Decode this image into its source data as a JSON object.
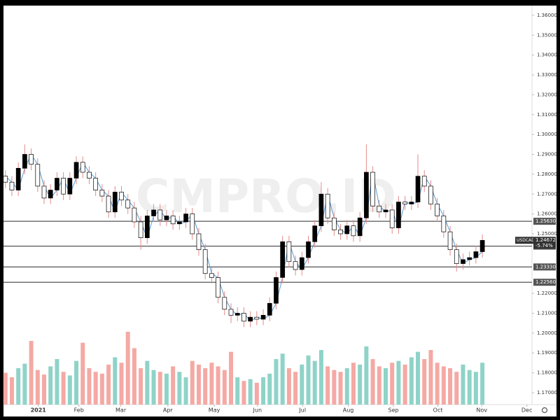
{
  "chart_data": {
    "type": "candlestick",
    "watermark": "CMPRO.ID",
    "xlim": [
      -0.3,
      81.7
    ],
    "xticks": [
      {
        "value": 5.1,
        "label": "2021"
      },
      {
        "value": 11.4,
        "label": "Feb"
      },
      {
        "value": 17.9,
        "label": "Mar"
      },
      {
        "value": 25.2,
        "label": "Apr"
      },
      {
        "value": 32.4,
        "label": "May"
      },
      {
        "value": 39.1,
        "label": "Jun"
      },
      {
        "value": 46.1,
        "label": "Jul"
      },
      {
        "value": 53.2,
        "label": "Aug"
      },
      {
        "value": 60.2,
        "label": "Sep"
      },
      {
        "value": 67.1,
        "label": "Oct"
      },
      {
        "value": 73.9,
        "label": "Nov"
      },
      {
        "value": 80.9,
        "label": "Dec"
      }
    ],
    "ylim": [
      1.164,
      1.3649
    ],
    "yticks": [
      {
        "value": 1.36,
        "label": "1.36000"
      },
      {
        "value": 1.35,
        "label": "1.35000"
      },
      {
        "value": 1.34,
        "label": "1.34000"
      },
      {
        "value": 1.33,
        "label": "1.33000"
      },
      {
        "value": 1.32,
        "label": "1.32000"
      },
      {
        "value": 1.31,
        "label": "1.31000"
      },
      {
        "value": 1.3,
        "label": "1.30000"
      },
      {
        "value": 1.29,
        "label": "1.29000"
      },
      {
        "value": 1.28,
        "label": "1.28000"
      },
      {
        "value": 1.27,
        "label": "1.27000"
      },
      {
        "value": 1.26,
        "label": "1.26000"
      },
      {
        "value": 1.25,
        "label": "1.25000"
      },
      {
        "value": 1.22,
        "label": "1.22000"
      },
      {
        "value": 1.21,
        "label": "1.21000"
      },
      {
        "value": 1.2,
        "label": "1.20000"
      },
      {
        "value": 1.19,
        "label": "1.19000"
      },
      {
        "value": 1.18,
        "label": "1.18000"
      },
      {
        "value": 1.17,
        "label": "1.17000"
      }
    ],
    "up_color": "#000000",
    "down_color": "#ffffff",
    "wick_color": "#e58a8a",
    "ma_color": "#5b9bd5",
    "volume_up_color": "#8fd3c8",
    "volume_down_color": "#f4a9a4",
    "volume_lim": [
      0,
      100
    ],
    "opens": [
      1.279,
      1.276,
      1.272,
      1.283,
      1.29,
      1.285,
      1.274,
      1.268,
      1.272,
      1.278,
      1.27,
      1.278,
      1.286,
      1.281,
      1.278,
      1.272,
      1.269,
      1.261,
      1.271,
      1.267,
      1.263,
      1.256,
      1.248,
      1.259,
      1.262,
      1.257,
      1.259,
      1.255,
      1.256,
      1.26,
      1.25,
      1.242,
      1.23,
      1.228,
      1.218,
      1.212,
      1.209,
      1.21,
      1.206,
      1.208,
      1.207,
      1.209,
      1.215,
      1.228,
      1.246,
      1.236,
      1.232,
      1.238,
      1.246,
      1.254,
      1.27,
      1.258,
      1.252,
      1.25,
      1.254,
      1.249,
      1.258,
      1.281,
      1.264,
      1.261,
      1.262,
      1.253,
      1.266,
      1.265,
      1.266,
      1.279,
      1.274,
      1.265,
      1.259,
      1.251,
      1.242,
      1.235,
      1.237,
      1.238,
      1.241
    ],
    "highs": [
      1.282,
      1.279,
      1.286,
      1.295,
      1.293,
      1.288,
      1.277,
      1.275,
      1.281,
      1.281,
      1.281,
      1.289,
      1.289,
      1.284,
      1.281,
      1.275,
      1.272,
      1.274,
      1.274,
      1.27,
      1.266,
      1.259,
      1.262,
      1.265,
      1.265,
      1.262,
      1.262,
      1.259,
      1.263,
      1.263,
      1.253,
      1.245,
      1.233,
      1.231,
      1.221,
      1.215,
      1.213,
      1.213,
      1.211,
      1.211,
      1.212,
      1.218,
      1.231,
      1.249,
      1.249,
      1.239,
      1.241,
      1.249,
      1.257,
      1.276,
      1.273,
      1.261,
      1.255,
      1.257,
      1.257,
      1.261,
      1.295,
      1.284,
      1.267,
      1.265,
      1.265,
      1.269,
      1.269,
      1.269,
      1.29,
      1.282,
      1.277,
      1.268,
      1.262,
      1.254,
      1.245,
      1.24,
      1.241,
      1.244,
      1.2497
    ],
    "lows": [
      1.273,
      1.269,
      1.269,
      1.28,
      1.282,
      1.271,
      1.265,
      1.265,
      1.269,
      1.267,
      1.267,
      1.275,
      1.278,
      1.275,
      1.269,
      1.266,
      1.258,
      1.258,
      1.264,
      1.26,
      1.253,
      1.242,
      1.245,
      1.256,
      1.254,
      1.254,
      1.252,
      1.252,
      1.253,
      1.247,
      1.239,
      1.227,
      1.225,
      1.215,
      1.209,
      1.205,
      1.206,
      1.203,
      1.203,
      1.204,
      1.204,
      1.206,
      1.212,
      1.225,
      1.233,
      1.229,
      1.229,
      1.235,
      1.243,
      1.251,
      1.255,
      1.249,
      1.247,
      1.247,
      1.246,
      1.246,
      1.255,
      1.261,
      1.258,
      1.258,
      1.25,
      1.25,
      1.262,
      1.262,
      1.263,
      1.271,
      1.262,
      1.256,
      1.248,
      1.239,
      1.231,
      1.232,
      1.234,
      1.235,
      1.238
    ],
    "closes": [
      1.276,
      1.272,
      1.283,
      1.29,
      1.285,
      1.274,
      1.268,
      1.272,
      1.278,
      1.27,
      1.278,
      1.286,
      1.281,
      1.278,
      1.272,
      1.269,
      1.261,
      1.271,
      1.267,
      1.263,
      1.256,
      1.248,
      1.259,
      1.262,
      1.257,
      1.259,
      1.255,
      1.256,
      1.26,
      1.25,
      1.242,
      1.23,
      1.228,
      1.218,
      1.212,
      1.209,
      1.21,
      1.206,
      1.208,
      1.207,
      1.209,
      1.215,
      1.228,
      1.246,
      1.236,
      1.232,
      1.238,
      1.246,
      1.254,
      1.27,
      1.258,
      1.252,
      1.25,
      1.254,
      1.249,
      1.258,
      1.281,
      1.264,
      1.261,
      1.262,
      1.253,
      1.266,
      1.265,
      1.266,
      1.279,
      1.274,
      1.265,
      1.259,
      1.251,
      1.242,
      1.235,
      1.237,
      1.238,
      1.241,
      1.2467
    ],
    "ma_values": [
      1.279,
      1.276,
      1.272,
      1.283,
      1.29,
      1.285,
      1.274,
      1.268,
      1.272,
      1.278,
      1.27,
      1.278,
      1.286,
      1.281,
      1.278,
      1.272,
      1.269,
      1.261,
      1.271,
      1.267,
      1.263,
      1.256,
      1.248,
      1.259,
      1.262,
      1.257,
      1.259,
      1.255,
      1.256,
      1.26,
      1.25,
      1.242,
      1.23,
      1.228,
      1.218,
      1.212,
      1.209,
      1.21,
      1.206,
      1.208,
      1.207,
      1.209,
      1.215,
      1.228,
      1.246,
      1.236,
      1.232,
      1.238,
      1.246,
      1.254,
      1.27,
      1.258,
      1.252,
      1.25,
      1.254,
      1.249,
      1.258,
      1.281,
      1.264,
      1.261,
      1.262,
      1.253,
      1.266,
      1.265,
      1.266,
      1.279,
      1.274,
      1.265,
      1.259,
      1.251,
      1.242,
      1.235,
      1.237,
      1.238,
      1.241
    ],
    "volumes": [
      35,
      30,
      40,
      45,
      70,
      38,
      33,
      42,
      50,
      36,
      32,
      48,
      68,
      40,
      36,
      34,
      44,
      52,
      46,
      80,
      62,
      40,
      48,
      38,
      36,
      34,
      42,
      36,
      30,
      48,
      44,
      40,
      46,
      42,
      38,
      58,
      30,
      26,
      28,
      24,
      30,
      34,
      50,
      56,
      40,
      36,
      44,
      54,
      48,
      60,
      42,
      38,
      36,
      40,
      46,
      44,
      64,
      50,
      42,
      40,
      46,
      48,
      44,
      52,
      58,
      50,
      60,
      46,
      42,
      40,
      36,
      44,
      38,
      36,
      46
    ],
    "levels": [
      {
        "value": 1.2563,
        "label": "1.25630"
      },
      {
        "value": 1.2438,
        "label": "1.24380"
      },
      {
        "value": 1.2333,
        "label": "1.23330"
      },
      {
        "value": 1.2256,
        "label": "1.22560"
      }
    ],
    "last": {
      "symbol": "USDCAD",
      "price": {
        "value": 1.24672,
        "label": "1.24672"
      },
      "change": "-5.74%"
    }
  }
}
